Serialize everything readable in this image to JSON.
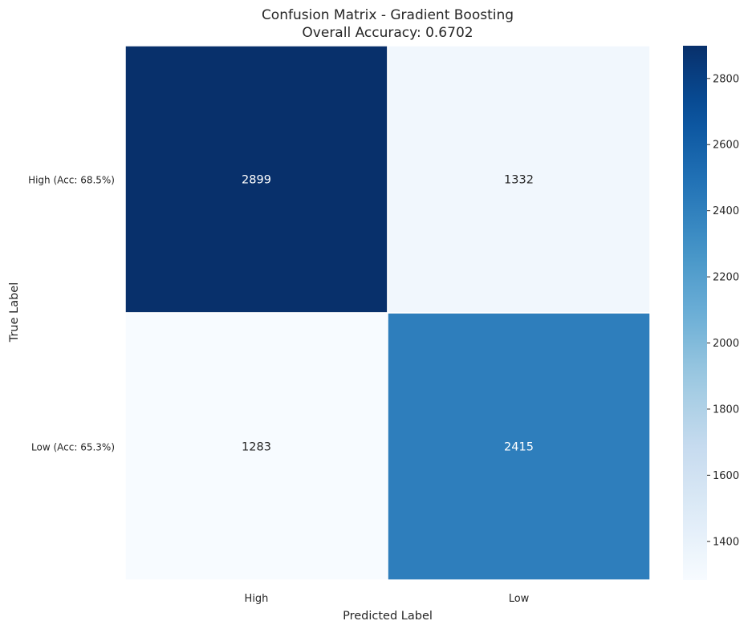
{
  "chart_data": {
    "type": "heatmap",
    "title": "Confusion Matrix - Gradient Boosting",
    "subtitle": "Overall Accuracy: 0.6702",
    "xlabel": "Predicted Label",
    "ylabel": "True Label",
    "x_categories": [
      "High",
      "Low"
    ],
    "y_categories": [
      "High (Acc: 68.5%)",
      "Low (Acc: 65.3%)"
    ],
    "values": [
      [
        2899,
        1332
      ],
      [
        1283,
        2415
      ]
    ],
    "value_labels": [
      [
        "2899",
        "1332"
      ],
      [
        "1283",
        "2415"
      ]
    ],
    "colorbar": {
      "min": 1283,
      "max": 2899,
      "ticks": [
        1400,
        1600,
        1800,
        2000,
        2200,
        2400,
        2600,
        2800
      ],
      "tick_labels": [
        "1400",
        "1600",
        "1800",
        "2000",
        "2200",
        "2400",
        "2600",
        "2800"
      ],
      "colormap": "Blues"
    }
  }
}
